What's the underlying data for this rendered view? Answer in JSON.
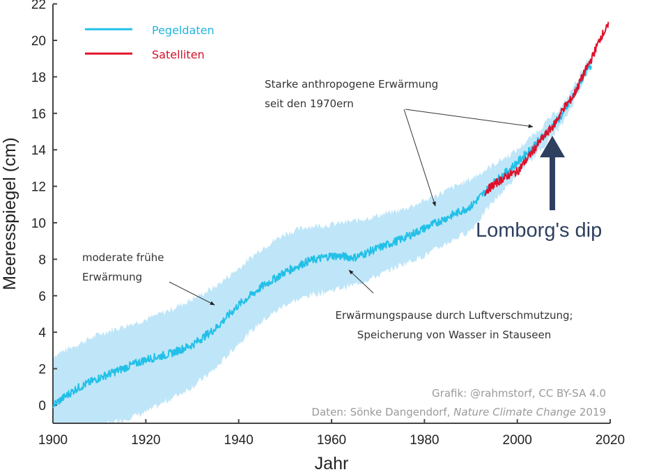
{
  "chart_data": {
    "type": "line",
    "xlabel": "Jahr",
    "ylabel": "Meeresspiegel (cm)",
    "xlim": [
      1900,
      2020
    ],
    "ylim": [
      -1,
      22
    ],
    "xticks": [
      "1900",
      "1920",
      "1940",
      "1960",
      "1980",
      "2000",
      "2020"
    ],
    "yticks": [
      "0",
      "2",
      "4",
      "6",
      "8",
      "10",
      "12",
      "14",
      "16",
      "18",
      "20",
      "22"
    ],
    "grid": false,
    "legend": {
      "placement": "top-left",
      "entries": [
        "Pegeldaten",
        "Satelliten"
      ]
    },
    "colors": {
      "Pegeldaten": "#22c0e8",
      "Satelliten": "#e0102a",
      "band": "#bfe6f8",
      "arrow": "#2e3f5f"
    },
    "series": [
      {
        "name": "Pegeldaten",
        "x": [
          1900,
          1905,
          1910,
          1915,
          1920,
          1925,
          1930,
          1935,
          1940,
          1945,
          1950,
          1955,
          1960,
          1965,
          1970,
          1975,
          1980,
          1985,
          1990,
          1995,
          2000,
          2005,
          2010,
          2015,
          2016
        ],
        "y": [
          0,
          0.9,
          1.5,
          2.0,
          2.5,
          2.8,
          3.3,
          4.2,
          5.5,
          6.5,
          7.3,
          7.9,
          8.2,
          8.1,
          8.6,
          9.1,
          9.7,
          10.3,
          10.9,
          12.2,
          13.3,
          14.6,
          16.0,
          18.4,
          18.6
        ],
        "band_upper": [
          2.7,
          3.3,
          3.9,
          4.3,
          4.7,
          5.2,
          5.8,
          6.5,
          7.5,
          8.6,
          9.4,
          9.8,
          9.9,
          10.1,
          10.4,
          10.7,
          11.2,
          11.8,
          12.4,
          13.2,
          14.0,
          15.2,
          16.5,
          18.8,
          19.0
        ],
        "band_lower": [
          -1.5,
          -1.5,
          -1.2,
          -0.8,
          -0.4,
          0.3,
          1.0,
          2.0,
          3.4,
          4.6,
          5.5,
          6.0,
          6.3,
          6.6,
          7.1,
          7.7,
          8.2,
          8.9,
          9.6,
          11.2,
          12.6,
          14.0,
          15.5,
          18.2,
          18.4
        ]
      },
      {
        "name": "Satelliten",
        "x": [
          1993,
          1995,
          1998,
          2000,
          2003,
          2005,
          2008,
          2010,
          2012,
          2014,
          2016,
          2018,
          2019.6
        ],
        "y": [
          11.7,
          12.1,
          12.6,
          12.8,
          13.8,
          14.5,
          15.4,
          16.3,
          16.9,
          18.0,
          19.0,
          20.2,
          20.8
        ]
      }
    ],
    "annotations": {
      "strong": [
        "Starke anthropogene Erwärmung",
        "seit den 1970ern"
      ],
      "early": [
        "moderate frühe",
        "Erwärmung"
      ],
      "pause": [
        "Erwärmungspause durch Luftverschmutzung;",
        "Speicherung von Wasser in Stauseen"
      ],
      "lomborg": "Lomborg's dip"
    },
    "credits": {
      "graphic": "Grafik: @rahmstorf, CC BY-SA 4.0",
      "data_prefix": "Daten: Sönke Dangendorf, ",
      "journal": "Nature Climate Change",
      "year": " 2019"
    }
  }
}
